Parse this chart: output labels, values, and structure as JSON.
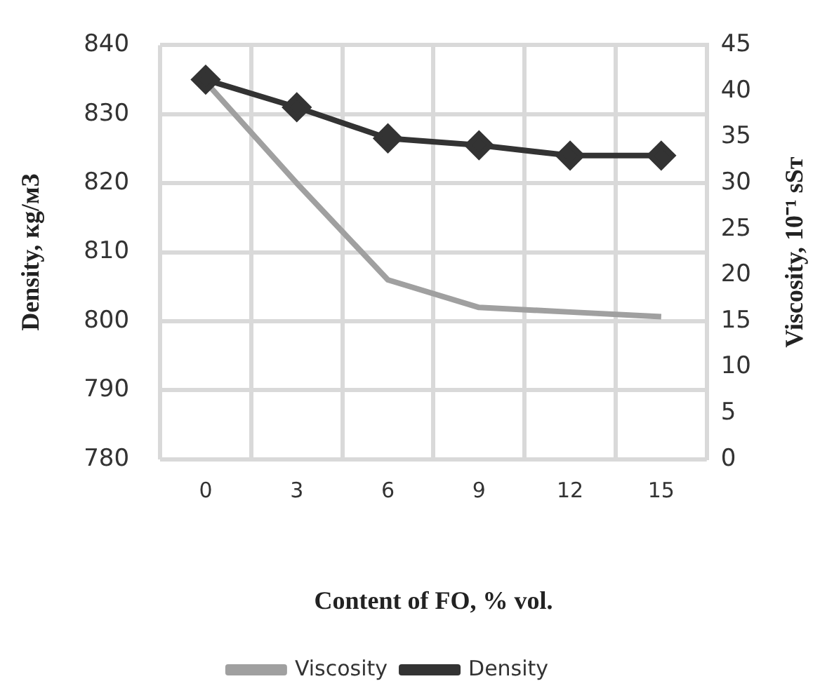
{
  "chart_data": {
    "type": "line",
    "xlabel": "Content of FO, % vol.",
    "ylabel": "Density, кg/мЗ",
    "y2label": "Viscosity, 10⁻¹ sSт",
    "categories": [
      "0",
      "3",
      "6",
      "9",
      "12",
      "15"
    ],
    "series": [
      {
        "name": "Viscosity",
        "color": "#a0a0a0",
        "values": [
          41,
          30,
          19.5,
          16.5,
          16,
          15.5
        ],
        "axis": "y2",
        "marker": "none"
      },
      {
        "name": "Density",
        "color": "#333333",
        "values": [
          835,
          831,
          826.5,
          825.5,
          824,
          824
        ],
        "marker": "diamond"
      }
    ],
    "ylim": [
      780,
      840
    ],
    "yticks": [
      780,
      790,
      800,
      810,
      820,
      830,
      840
    ],
    "y2lim": [
      0,
      45
    ],
    "y2ticks": [
      0,
      5,
      10,
      15,
      20,
      25,
      30,
      35,
      40,
      45
    ],
    "grid": true,
    "legend": "bottom",
    "line_style": "solid"
  }
}
